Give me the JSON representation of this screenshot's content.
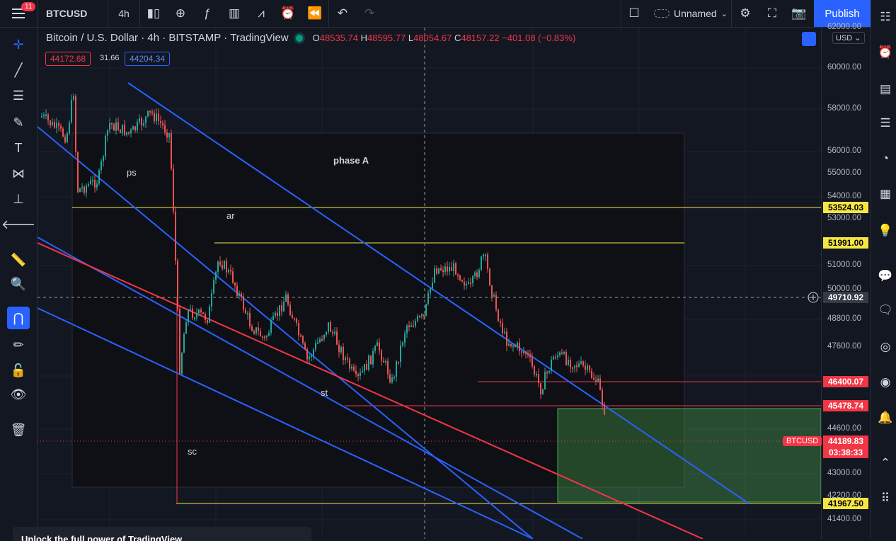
{
  "topbar": {
    "badge": "11",
    "symbol": "BTCUSD",
    "interval": "4h",
    "layout_name": "Unnamed",
    "publish_label": "Publish"
  },
  "legend": {
    "title": "Bitcoin / U.S. Dollar · 4h · BITSTAMP · TradingView",
    "o_label": "O",
    "o": "48535.74",
    "h_label": "H",
    "h": "48595.77",
    "l_label": "L",
    "l": "48054.67",
    "c_label": "C",
    "c": "48157.22",
    "change": "−401.08 (−0.83%)",
    "bid": "44172.68",
    "spread": "31.66",
    "ask": "44204.34"
  },
  "annotations": {
    "phase_a": "phase A",
    "ps": "ps",
    "ar": "ar",
    "st": "st",
    "sc": "sc"
  },
  "price_axis": {
    "currency": "USD",
    "ticks": [
      "62000.00",
      "60000.00",
      "58000.00",
      "56000.00",
      "55000.00",
      "54000.00",
      "53000.00",
      "51000.00",
      "50000.00",
      "48800.00",
      "47600.00",
      "44600.00",
      "43000.00",
      "42200.00",
      "41400.00"
    ],
    "labels": {
      "l53524": "53524.03",
      "l51991": "51991.00",
      "crosshair": "49710.92",
      "l46400": "46400.07",
      "l45478": "45478.74",
      "current": "44189.83",
      "countdown": "03:38:33",
      "l41967": "41967.50",
      "btc_tag": "BTCUSD"
    }
  },
  "colors": {
    "bg": "#131722",
    "up": "#26a69a",
    "down": "#ef5350",
    "yellow": "#f5e642",
    "blue_line": "#2962ff",
    "red_line": "#f23645",
    "accent": "#2962ff"
  },
  "toast": {
    "text": "Unlock the full power of TradingView"
  }
}
